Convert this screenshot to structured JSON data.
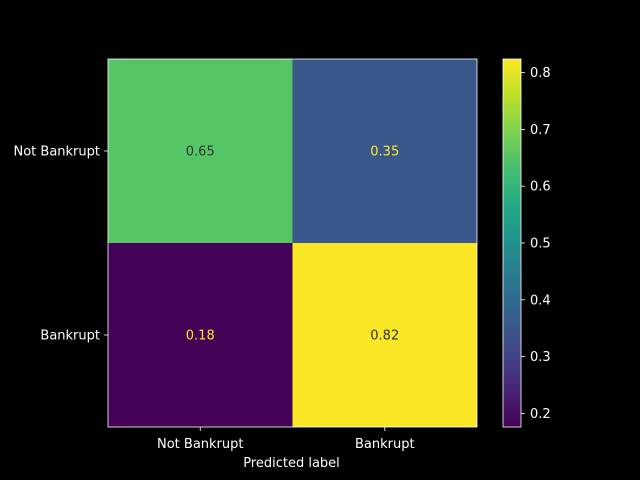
{
  "chart_data": {
    "type": "heatmap",
    "title": "",
    "xlabel": "Predicted label",
    "ylabel": "",
    "x_categories": [
      "Not Bankrupt",
      "Bankrupt"
    ],
    "y_categories": [
      "Not Bankrupt",
      "Bankrupt"
    ],
    "values": [
      [
        0.65,
        0.35
      ],
      [
        0.18,
        0.82
      ]
    ],
    "value_labels": [
      [
        "0.65",
        "0.35"
      ],
      [
        "0.18",
        "0.82"
      ]
    ],
    "colormap": "viridis",
    "colorbar": {
      "range": [
        0.176,
        0.824
      ],
      "ticks": [
        0.2,
        0.3,
        0.4,
        0.5,
        0.6,
        0.7,
        0.8
      ],
      "tick_labels": [
        "0.2",
        "0.3",
        "0.4",
        "0.5",
        "0.6",
        "0.7",
        "0.8"
      ]
    },
    "grid": false,
    "legend": "colorbar-right"
  }
}
